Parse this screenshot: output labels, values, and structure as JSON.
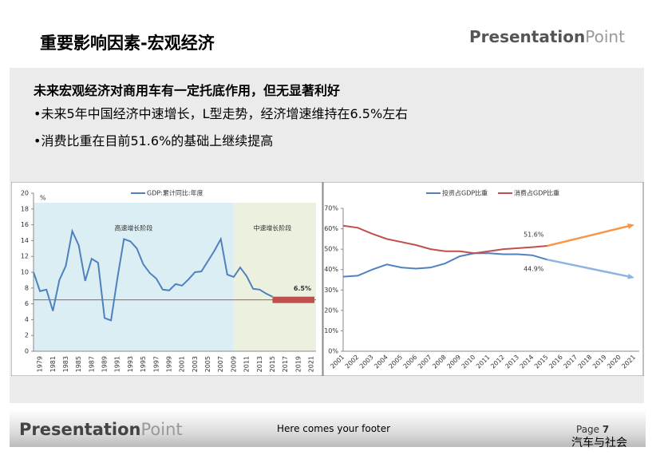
{
  "header": {
    "title": "重要影响因素-宏观经济",
    "logo": [
      "Presentation",
      "Point"
    ]
  },
  "body": {
    "heading": "未来宏观经济对商用车有一定托底作用，但无显著利好",
    "bullets": [
      "•未来5年中国经济中速增长，L型走势，经济增速维持在6.5%左右",
      "•消费比重在目前51.6%的基础上继续提高"
    ]
  },
  "footer": {
    "logo": [
      "Presentation",
      "Point"
    ],
    "text": "Here comes your footer",
    "page": [
      "Page",
      "7"
    ],
    "watermark": "汽车与社会"
  },
  "chart_data": [
    {
      "type": "line",
      "unit": "%",
      "annotations": [
        "高速增长阶段",
        "中速增长阶段"
      ],
      "categories": [
        null,
        "1979",
        null,
        "1981",
        null,
        "1983",
        null,
        "1985",
        null,
        "1987",
        null,
        "1989",
        null,
        "1991",
        null,
        "1993",
        null,
        "1995",
        null,
        "1997",
        null,
        "1999",
        null,
        "2001",
        null,
        "2003",
        null,
        "2005",
        null,
        "2007",
        null,
        "2009",
        null,
        "2011",
        null,
        "2013",
        null,
        "2015",
        null,
        "2017",
        null,
        "2019",
        null,
        "2021"
      ],
      "series": [
        {
          "name": "GDP:累计同比:年度",
          "color": "#4f81bd",
          "values": [
            10,
            7.6,
            7.8,
            5.1,
            9,
            10.8,
            15.2,
            13.4,
            8.9,
            11.7,
            11.2,
            4.2,
            3.9,
            9.3,
            14.2,
            13.9,
            13,
            11,
            9.9,
            9.2,
            7.8,
            7.7,
            8.5,
            8.3,
            9.1,
            10,
            10.1,
            11.4,
            12.7,
            14.2,
            9.7,
            9.4,
            10.6,
            9.5,
            7.9,
            7.8,
            7.3,
            6.9,
            null,
            null,
            null,
            null,
            null,
            null
          ]
        }
      ],
      "target": 6.5,
      "target_label": "6.5%",
      "target_color": "#c0504d",
      "ylim": [
        0,
        20
      ],
      "yticks": [
        0,
        2,
        4,
        6,
        8,
        10,
        12,
        14,
        16,
        18,
        20
      ]
    },
    {
      "type": "line",
      "categories": [
        "2001",
        "2002",
        "2003",
        "2004",
        "2005",
        "2006",
        "2007",
        "2008",
        "2009",
        "2010",
        "2011",
        "2012",
        "2013",
        "2014",
        "2015",
        "2016",
        "2017",
        "2018",
        "2019",
        "2020",
        "2021"
      ],
      "series": [
        {
          "name": "投资占GDP比重",
          "color": "#4f81bd",
          "values": [
            36.5,
            37,
            40,
            42.5,
            41,
            40.5,
            41,
            43,
            46.5,
            48,
            48,
            47.5,
            47.5,
            47,
            44.9,
            null,
            null,
            null,
            null,
            null,
            null
          ],
          "value_labels": [
            null,
            null,
            null,
            null,
            null,
            null,
            null,
            null,
            null,
            null,
            null,
            null,
            null,
            null,
            "44.9%",
            null,
            null,
            null,
            null,
            null,
            null
          ]
        },
        {
          "name": "消费占GDP比重",
          "color": "#c0504d",
          "values": [
            61.5,
            60.5,
            57.5,
            55,
            53.5,
            52,
            50,
            49,
            49,
            48,
            49,
            50,
            50.5,
            51,
            51.6,
            null,
            null,
            null,
            null,
            null,
            null
          ],
          "value_labels": [
            null,
            null,
            null,
            null,
            null,
            null,
            null,
            null,
            null,
            null,
            null,
            null,
            null,
            null,
            "51.6%",
            null,
            null,
            null,
            null,
            null,
            null
          ]
        }
      ],
      "arrows": [
        {
          "color": "#f79646",
          "from": 51.6,
          "to": 62
        },
        {
          "color": "#8db4e2",
          "from": 44.9,
          "to": 36
        }
      ],
      "ylim": [
        0,
        70
      ],
      "yticks": [
        {
          "value": 0,
          "label": "0%"
        },
        {
          "value": 10,
          "label": "10%"
        },
        {
          "value": 20,
          "label": "20%"
        },
        {
          "value": 30,
          "label": "30%"
        },
        {
          "value": 40,
          "label": "40%"
        },
        {
          "value": 50,
          "label": "50%"
        },
        {
          "value": 60,
          "label": "60%"
        },
        {
          "value": 70,
          "label": "70%"
        }
      ]
    }
  ]
}
